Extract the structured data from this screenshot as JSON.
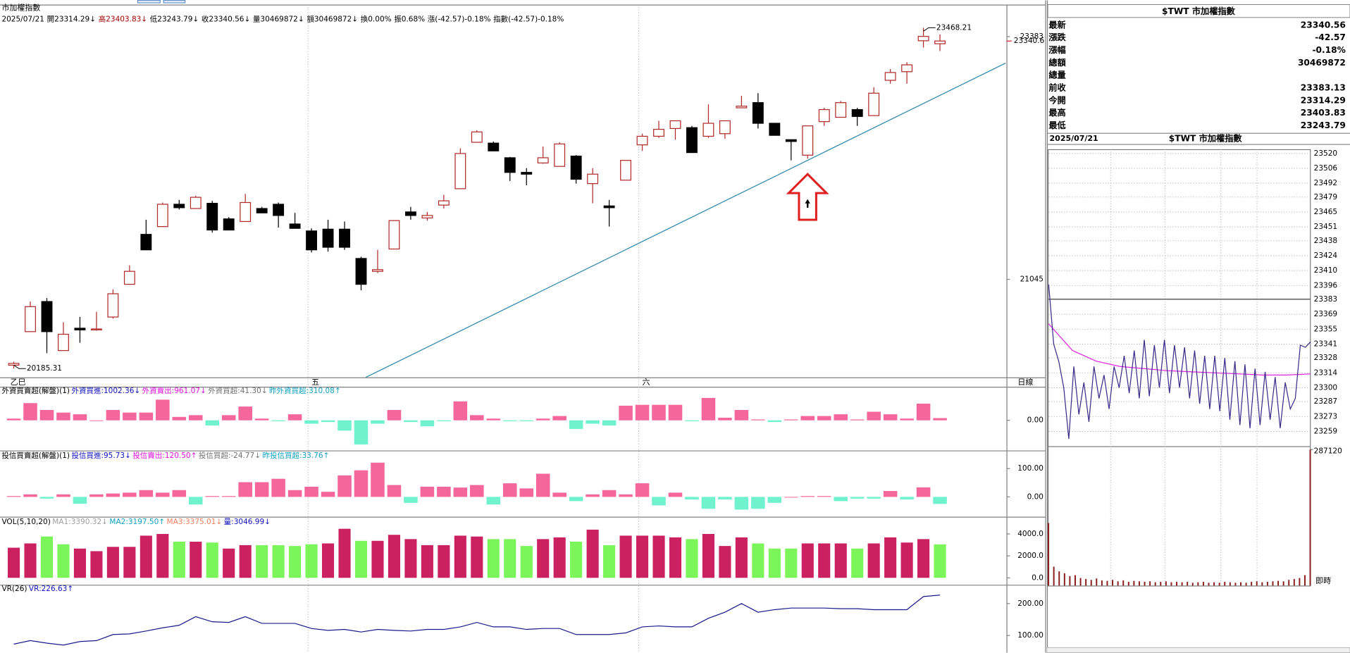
{
  "header": {
    "title": "市加權指數",
    "info": [
      {
        "text": "2025/07/21",
        "color": "#000000"
      },
      {
        "text": "開23314.29↓",
        "color": "#000000"
      },
      {
        "text": "高23403.83↓",
        "color": "#a00000"
      },
      {
        "text": "低23243.79↓",
        "color": "#000000"
      },
      {
        "text": "收23340.56↓",
        "color": "#000000"
      },
      {
        "text": "量30469872↓",
        "color": "#000000"
      },
      {
        "text": "額30469872↓",
        "color": "#000000"
      },
      {
        "text": "換0.00%",
        "color": "#000000"
      },
      {
        "text": "振0.68%",
        "color": "#000000"
      },
      {
        "text": "漲(-42.57)-0.18%",
        "color": "#000000"
      },
      {
        "text": "指數(-42.57)-0.18%",
        "color": "#000000"
      }
    ],
    "period": "日線"
  },
  "chart_data": [
    {
      "type": "candlestick",
      "categories": [
        "乙巳",
        null,
        null,
        null,
        null,
        null,
        null,
        null,
        null,
        null,
        null,
        null,
        null,
        null,
        null,
        null,
        null,
        null,
        "五",
        null,
        null,
        null,
        null,
        null,
        null,
        null,
        null,
        null,
        null,
        null,
        null,
        null,
        null,
        null,
        null,
        null,
        null,
        null,
        "六",
        null,
        null,
        null,
        null,
        null,
        null,
        null,
        null,
        null,
        null,
        null,
        null,
        null,
        null,
        null,
        null,
        null,
        null
      ],
      "open": [
        20218,
        20541,
        20831,
        20359,
        20574,
        20558,
        20682,
        20997,
        21478,
        21553,
        21768,
        21727,
        21777,
        21627,
        21602,
        21727,
        21768,
        21578,
        21511,
        21528,
        21528,
        21246,
        21122,
        21337,
        21694,
        21636,
        21760,
        21918,
        22365,
        22357,
        22216,
        22075,
        22166,
        22133,
        22232,
        21967,
        21752,
        22000,
        22340,
        22423,
        22498,
        22506,
        22423,
        22448,
        22697,
        22747,
        22548,
        22390,
        22241,
        22564,
        22606,
        22680,
        22622,
        22962,
        23045,
        23343,
        23314.29
      ],
      "high": [
        20251,
        20831,
        20865,
        20632,
        20682,
        20732,
        20948,
        21180,
        21619,
        21785,
        21810,
        21851,
        21801,
        21644,
        21868,
        21743,
        21785,
        21685,
        21536,
        21619,
        21602,
        21263,
        21329,
        21611,
        21743,
        21694,
        21859,
        22307,
        22481,
        22373,
        22224,
        22116,
        22324,
        22365,
        22241,
        22116,
        21810,
        22191,
        22448,
        22572,
        22572,
        22523,
        22730,
        22572,
        22813,
        22838,
        22548,
        22390,
        22523,
        22697,
        22763,
        22697,
        22896,
        23070,
        23136,
        23468.21,
        23403.83
      ],
      "low": [
        20185.31,
        20541,
        20334,
        20359,
        20434,
        20550,
        20666,
        20997,
        21329,
        21553,
        21718,
        21727,
        21495,
        21520,
        21602,
        21685,
        21544,
        21536,
        21304,
        21312,
        21329,
        20939,
        21105,
        21337,
        21619,
        21611,
        21727,
        21918,
        22365,
        22282,
        21992,
        21951,
        22158,
        22133,
        21967,
        21777,
        21553,
        22000,
        22282,
        22407,
        22390,
        22266,
        22407,
        22398,
        22697,
        22498,
        22432,
        22191,
        22208,
        22523,
        22606,
        22523,
        22622,
        22929,
        22929,
        23277,
        23243.79
      ],
      "close": [
        20235,
        20782,
        20541,
        20516,
        20558,
        20567,
        20906,
        21122,
        21329,
        21768,
        21735,
        21835,
        21520,
        21520,
        21785,
        21685,
        21660,
        21536,
        21329,
        21354,
        21354,
        20997,
        21138,
        21611,
        21660,
        21660,
        21801,
        22257,
        22465,
        22282,
        22075,
        22058,
        22216,
        22349,
        22009,
        22058,
        21735,
        22191,
        22423,
        22490,
        22572,
        22266,
        22548,
        22572,
        22713,
        22548,
        22432,
        22373,
        22523,
        22680,
        22747,
        22614,
        22838,
        23037,
        23111,
        23385,
        23340.56
      ],
      "up_color": "#b22a2a",
      "down_color": "#000000",
      "ylim": [
        20118,
        23650
      ],
      "yticks": [
        21045,
        23383
      ],
      "price_marker": {
        "value": 23340.56,
        "label": "23340.6",
        "color": "#e02020"
      }
    },
    {
      "type": "bar",
      "legend": [
        {
          "text": "外資買賣超(解盤)(1)",
          "color": "#000000"
        },
        {
          "text": "外資買進:1002.36↓",
          "color": "#1010c0"
        },
        {
          "text": "外資賣出:961.07↓",
          "color": "#e010e0"
        },
        {
          "text": "外資買超:41.30↓",
          "color": "#707070"
        },
        {
          "text": "昨外資買超:310.08↑",
          "color": "#10a0c0"
        }
      ],
      "values": [
        32,
        320,
        192,
        144,
        112,
        0,
        192,
        144,
        144,
        384,
        64,
        96,
        -96,
        96,
        256,
        32,
        -16,
        112,
        -64,
        -32,
        -192,
        -448,
        -64,
        192,
        -32,
        -112,
        -16,
        352,
        96,
        32,
        -16,
        -16,
        32,
        80,
        -160,
        -64,
        -96,
        272,
        288,
        288,
        288,
        -16,
        416,
        48,
        192,
        16,
        -32,
        16,
        80,
        80,
        112,
        16,
        160,
        112,
        32,
        310.08,
        41.3
      ],
      "pos_color": "#f5679b",
      "neg_color": "#6ff2cd",
      "ylim": [
        -528,
        576
      ],
      "yticks": [
        {
          "value": 0,
          "label": "0.00"
        }
      ]
    },
    {
      "type": "bar",
      "legend": [
        {
          "text": "投信買賣超(解盤)(1)",
          "color": "#000000"
        },
        {
          "text": "投信買進:95.73↓",
          "color": "#1010c0"
        },
        {
          "text": "投信賣出:120.50↑",
          "color": "#e010e0"
        },
        {
          "text": "投信買超:-24.77↓",
          "color": "#707070"
        },
        {
          "text": "昨投信買超:33.76↑",
          "color": "#10a0c0"
        }
      ],
      "values": [
        3,
        9,
        -6,
        9,
        -24,
        9,
        12,
        15,
        24,
        15,
        24,
        -27,
        3,
        3,
        52,
        52,
        64,
        24,
        36,
        18,
        76,
        94,
        121,
        42,
        -21,
        36,
        36,
        33,
        42,
        -27,
        48,
        30,
        82,
        15,
        -15,
        9,
        24,
        9,
        48,
        -30,
        15,
        -9,
        -42,
        -9,
        -45,
        -42,
        -21,
        0,
        3,
        3,
        -15,
        -6,
        -6,
        21,
        -9,
        33.76,
        -24.77
      ],
      "pos_color": "#f5679b",
      "neg_color": "#6ff2cd",
      "ylim": [
        -64,
        152
      ],
      "yticks": [
        {
          "value": 0,
          "label": "0.00"
        },
        {
          "value": 100,
          "label": "100.00"
        }
      ]
    },
    {
      "type": "bar",
      "legend": [
        {
          "text": "VOL(5,10,20)",
          "color": "#000000"
        },
        {
          "text": "MA1:3390.32↓",
          "color": "#a0a0a0"
        },
        {
          "text": "MA2:3197.50↑",
          "color": "#10a0c0"
        },
        {
          "text": "MA3:3375.01↓",
          "color": "#f08060"
        },
        {
          "text": "量:3046.99↓",
          "color": "#1010c0"
        }
      ],
      "values": [
        2744,
        3136,
        3763,
        3058,
        2666,
        2430,
        2822,
        2822,
        3842,
        3998,
        3293,
        3293,
        3214,
        2666,
        2979,
        2979,
        2979,
        2901,
        3058,
        3136,
        4469,
        3371,
        3371,
        3920,
        3528,
        2979,
        2979,
        3842,
        3763,
        3528,
        3528,
        2901,
        3528,
        3685,
        3293,
        4390,
        2979,
        3842,
        3842,
        3842,
        3685,
        3528,
        3998,
        2901,
        3685,
        3136,
        2666,
        2666,
        3136,
        3136,
        3136,
        2666,
        3136,
        3685,
        3214,
        3528,
        3046.99
      ],
      "up_color": "#cc2160",
      "down_color": "#7cf55a",
      "ylim": [
        -470,
        5253
      ],
      "yticks": [
        {
          "value": 0,
          "label": "0.0"
        },
        {
          "value": 2000,
          "label": "2000.0"
        },
        {
          "value": 4000,
          "label": "4000.0"
        }
      ]
    },
    {
      "type": "line",
      "legend": [
        {
          "text": "VR(26)",
          "color": "#000000"
        },
        {
          "text": "VR:226.63↑",
          "color": "#1010c0"
        }
      ],
      "values": [
        73,
        84,
        76,
        70,
        81,
        84,
        103,
        105,
        114,
        124,
        132,
        159,
        143,
        141,
        159,
        138,
        138,
        138,
        122,
        116,
        119,
        111,
        119,
        116,
        114,
        119,
        119,
        127,
        141,
        127,
        127,
        119,
        122,
        122,
        103,
        103,
        103,
        108,
        127,
        130,
        127,
        127,
        154,
        173,
        200,
        173,
        181,
        186,
        186,
        186,
        184,
        184,
        181,
        181,
        181,
        222,
        226.63
      ],
      "color": "#1a1a8c",
      "ylim": [
        46,
        251
      ],
      "yticks": [
        {
          "value": 100,
          "label": "100.00"
        },
        {
          "value": 200,
          "label": "200.00"
        }
      ]
    }
  ],
  "quote": {
    "title": "$TWT 市加權指數",
    "rows": [
      {
        "label": "最新",
        "value": 23340.56,
        "color": "#008000"
      },
      {
        "label": "漲跌",
        "value": -42.57,
        "color": "#008000"
      },
      {
        "label": "漲幅",
        "value": "-0.18%",
        "color": "#008000"
      },
      {
        "label": "總額",
        "value": 30469872,
        "color": "#000000"
      },
      {
        "label": "總量"
      },
      {
        "label": "前收",
        "value": 23383.13,
        "color": "#000000"
      },
      {
        "label": "今開",
        "value": 23314.29,
        "color": "#008000"
      },
      {
        "label": "最高",
        "value": 23403.83,
        "color": "#8b0000"
      },
      {
        "label": "最低",
        "value": 23243.79,
        "color": "#008000"
      }
    ]
  },
  "intraday": {
    "date": "2025/07/21",
    "title": "$TWT 市加權指數",
    "values": [
      23397,
      23341,
      23325,
      23300,
      23252,
      23320,
      23275,
      23305,
      23268,
      23320,
      23290,
      23312,
      23280,
      23320,
      23300,
      23330,
      23295,
      23335,
      23290,
      23345,
      23292,
      23340,
      23300,
      23345,
      23295,
      23340,
      23300,
      23338,
      23290,
      23335,
      23285,
      23330,
      23280,
      23330,
      23278,
      23328,
      23270,
      23325,
      23265,
      23322,
      23262,
      23318,
      23265,
      23315,
      23270,
      23310,
      23262,
      23305,
      23280,
      23290,
      23340,
      23338,
      23343
    ],
    "avg_values": [
      23360,
      23335,
      23325,
      23320,
      23318,
      23316,
      23315,
      23314,
      23313,
      23312,
      23312,
      23313
    ],
    "color": "#3b2a8a",
    "avg_color": "#e020e0",
    "ylim": [
      23246,
      23524
    ],
    "yticks": [
      23520,
      23506,
      23492,
      23479,
      23465,
      23451,
      23438,
      23424,
      23410,
      23396,
      23383,
      23369,
      23355,
      23341,
      23328,
      23314,
      23300,
      23287,
      23273,
      23259
    ],
    "volume": {
      "values": [
        132000,
        40000,
        30000,
        26000,
        20000,
        22000,
        16000,
        14000,
        12000,
        15000,
        11000,
        10000,
        12000,
        9000,
        11000,
        8000,
        10000,
        9000,
        8000,
        9000,
        7000,
        8000,
        9000,
        7000,
        8000,
        7000,
        8000,
        6000,
        7000,
        8000,
        6000,
        7000,
        6000,
        8000,
        7000,
        6000,
        7000,
        6000,
        8000,
        9000,
        7000,
        8000,
        9000,
        10000,
        9000,
        12000,
        14000,
        16000,
        22000,
        287120
      ],
      "color": "#8b1a1a",
      "ylim": [
        0,
        287120
      ],
      "yticks": [
        287120
      ]
    },
    "time_label": "即時"
  }
}
